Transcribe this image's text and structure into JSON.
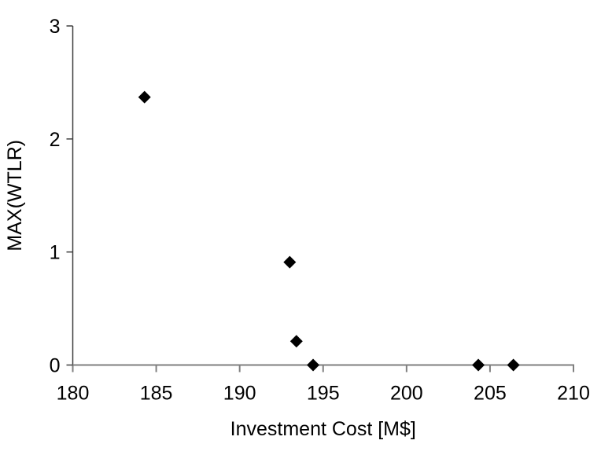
{
  "chart_data": {
    "type": "scatter",
    "title": "",
    "xlabel": "Investment Cost [M$]",
    "ylabel": "MAX(WTLR)",
    "xlim": [
      180,
      210
    ],
    "ylim": [
      0,
      3
    ],
    "xticks": [
      180,
      185,
      190,
      195,
      200,
      205,
      210
    ],
    "yticks": [
      0,
      1,
      2,
      3
    ],
    "grid": false,
    "legend": false,
    "marker": "diamond",
    "marker_size_px": 16,
    "series": [
      {
        "points": [
          [
            184.3,
            2.37
          ],
          [
            193.0,
            0.91
          ],
          [
            193.4,
            0.21
          ],
          [
            194.4,
            0.0
          ],
          [
            204.3,
            0.0
          ],
          [
            206.4,
            0.0
          ]
        ]
      }
    ],
    "colors": {
      "marker": "#000000",
      "x_axis_line": "#7f7f7f",
      "y_axis_line": "#3f3f3f",
      "text": "#000000",
      "background": "#ffffff"
    }
  }
}
